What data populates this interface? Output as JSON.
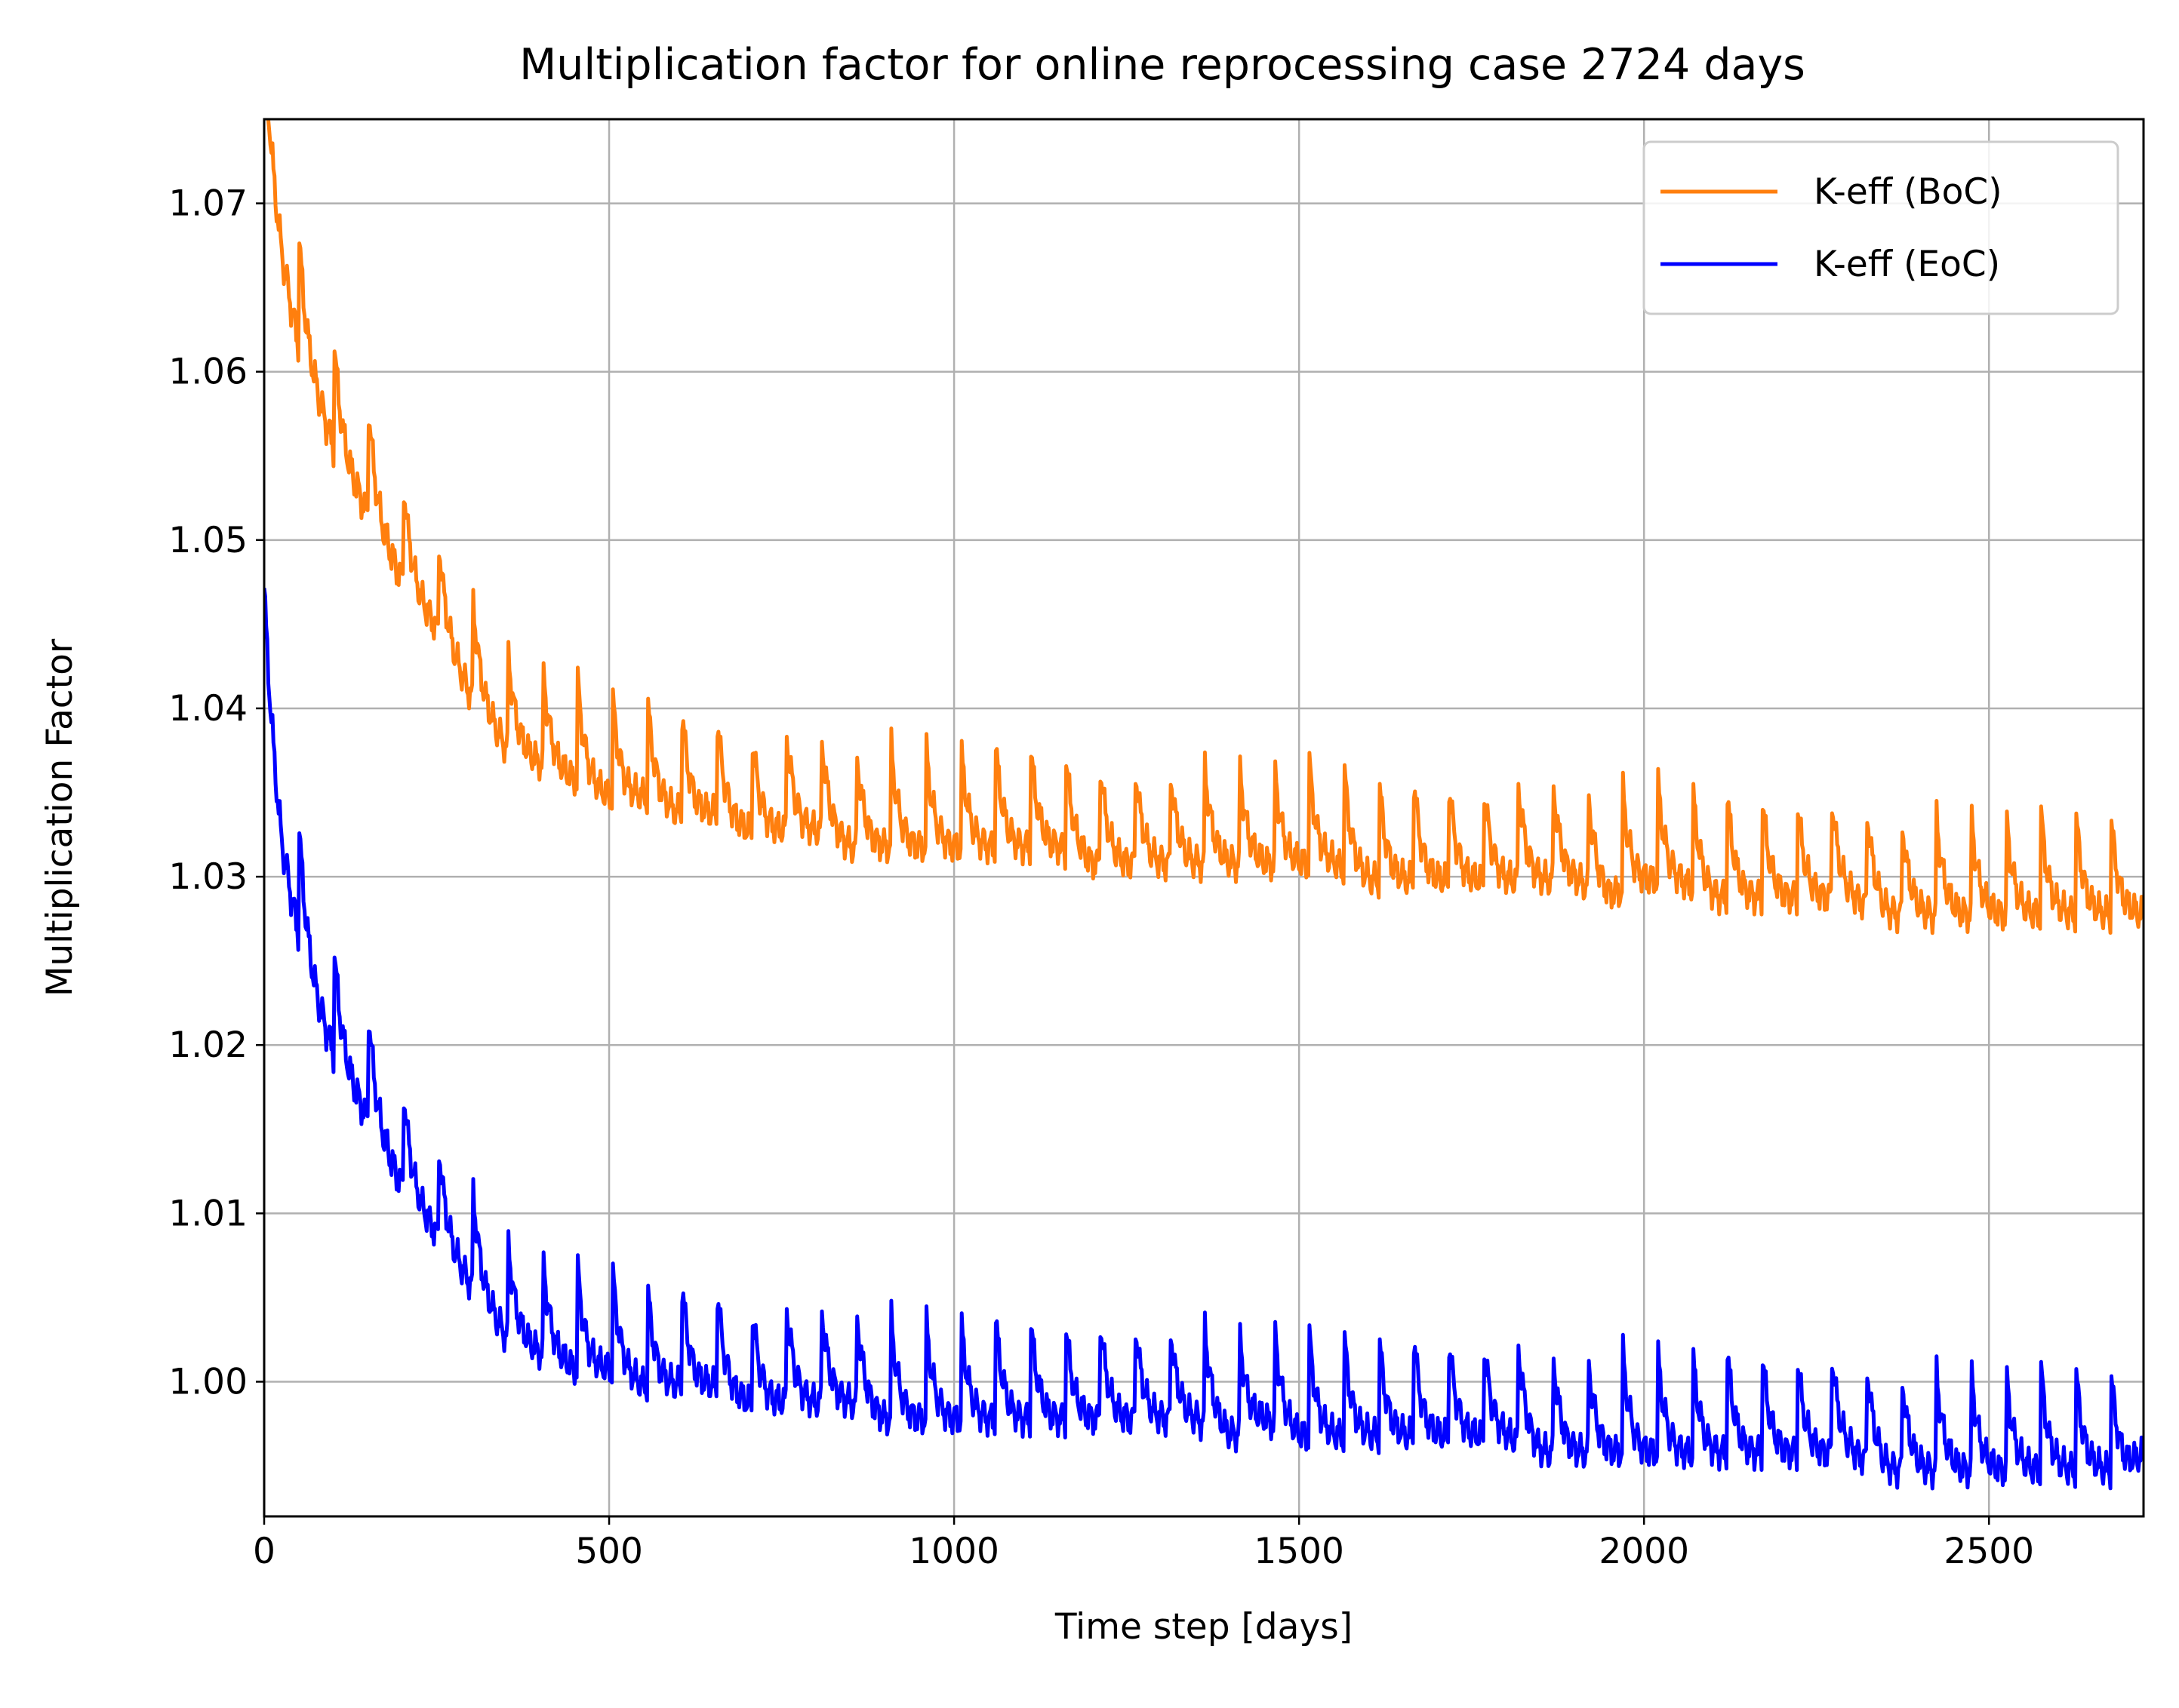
{
  "chart_data": {
    "type": "line",
    "title": "Multiplication factor for online reprocessing case 2724 days",
    "xlabel": "Time step [days]",
    "ylabel": "Multiplication Factor",
    "xlim": [
      0,
      2724
    ],
    "ylim": [
      0.992,
      1.075
    ],
    "xticks": [
      0,
      500,
      1000,
      1500,
      2000,
      2500
    ],
    "xtick_labels": [
      "0",
      "500",
      "1000",
      "1500",
      "2000",
      "2500"
    ],
    "yticks": [
      1.0,
      1.01,
      1.02,
      1.03,
      1.04,
      1.05,
      1.06,
      1.07
    ],
    "ytick_labels": [
      "1.00",
      "1.01",
      "1.02",
      "1.03",
      "1.04",
      "1.05",
      "1.06",
      "1.07"
    ],
    "grid": true,
    "legend_position": "top-right",
    "series": [
      {
        "name": "K-eff (BoC)",
        "color": "#ff7f0e",
        "x": [
          0,
          25,
          50,
          75,
          100,
          150,
          200,
          250,
          300,
          350,
          400,
          450,
          500,
          550,
          600,
          650,
          700,
          750,
          800,
          850,
          900,
          950,
          1000,
          1050,
          1100,
          1150,
          1200,
          1250,
          1300,
          1350,
          1400,
          1450,
          1500,
          1550,
          1600,
          1650,
          1700,
          1750,
          1800,
          1850,
          1900,
          1950,
          2000,
          2050,
          2100,
          2150,
          2200,
          2250,
          2300,
          2350,
          2400,
          2450,
          2500,
          2550,
          2600,
          2650,
          2700,
          2724
        ],
        "values": [
          1.075,
          1.068,
          1.063,
          1.06,
          1.057,
          1.053,
          1.049,
          1.046,
          1.042,
          1.039,
          1.038,
          1.037,
          1.036,
          1.036,
          1.035,
          1.035,
          1.034,
          1.034,
          1.034,
          1.033,
          1.033,
          1.033,
          1.033,
          1.033,
          1.033,
          1.033,
          1.032,
          1.032,
          1.032,
          1.032,
          1.032,
          1.032,
          1.032,
          1.032,
          1.031,
          1.031,
          1.031,
          1.031,
          1.031,
          1.031,
          1.031,
          1.03,
          1.031,
          1.031,
          1.03,
          1.03,
          1.03,
          1.03,
          1.03,
          1.029,
          1.029,
          1.029,
          1.029,
          1.029,
          1.029,
          1.029,
          1.029,
          1.029
        ],
        "refuel_peak": 0.006
      },
      {
        "name": "K-eff (EoC)",
        "color": "#0000ff",
        "x": [
          0,
          25,
          50,
          75,
          100,
          150,
          200,
          250,
          300,
          350,
          400,
          450,
          500,
          550,
          600,
          650,
          700,
          750,
          800,
          850,
          900,
          950,
          1000,
          1050,
          1100,
          1150,
          1200,
          1250,
          1300,
          1350,
          1400,
          1450,
          1500,
          1550,
          1600,
          1650,
          1700,
          1750,
          1800,
          1850,
          1900,
          1950,
          2000,
          2050,
          2100,
          2150,
          2200,
          2250,
          2300,
          2350,
          2400,
          2450,
          2500,
          2550,
          2600,
          2650,
          2700,
          2724
        ],
        "values": [
          1.042,
          1.033,
          1.028,
          1.024,
          1.021,
          1.017,
          1.013,
          1.01,
          1.007,
          1.004,
          1.003,
          1.002,
          1.002,
          1.001,
          1.001,
          1.001,
          1.0,
          1.0,
          1.0,
          1.0,
          0.999,
          0.999,
          0.999,
          0.999,
          0.999,
          0.999,
          0.999,
          0.999,
          0.999,
          0.999,
          0.998,
          0.999,
          0.998,
          0.998,
          0.998,
          0.998,
          0.998,
          0.998,
          0.998,
          0.997,
          0.997,
          0.997,
          0.997,
          0.997,
          0.997,
          0.997,
          0.997,
          0.997,
          0.997,
          0.996,
          0.996,
          0.996,
          0.996,
          0.996,
          0.996,
          0.996,
          0.996,
          0.997
        ],
        "refuel_peak": 0.006
      }
    ]
  }
}
